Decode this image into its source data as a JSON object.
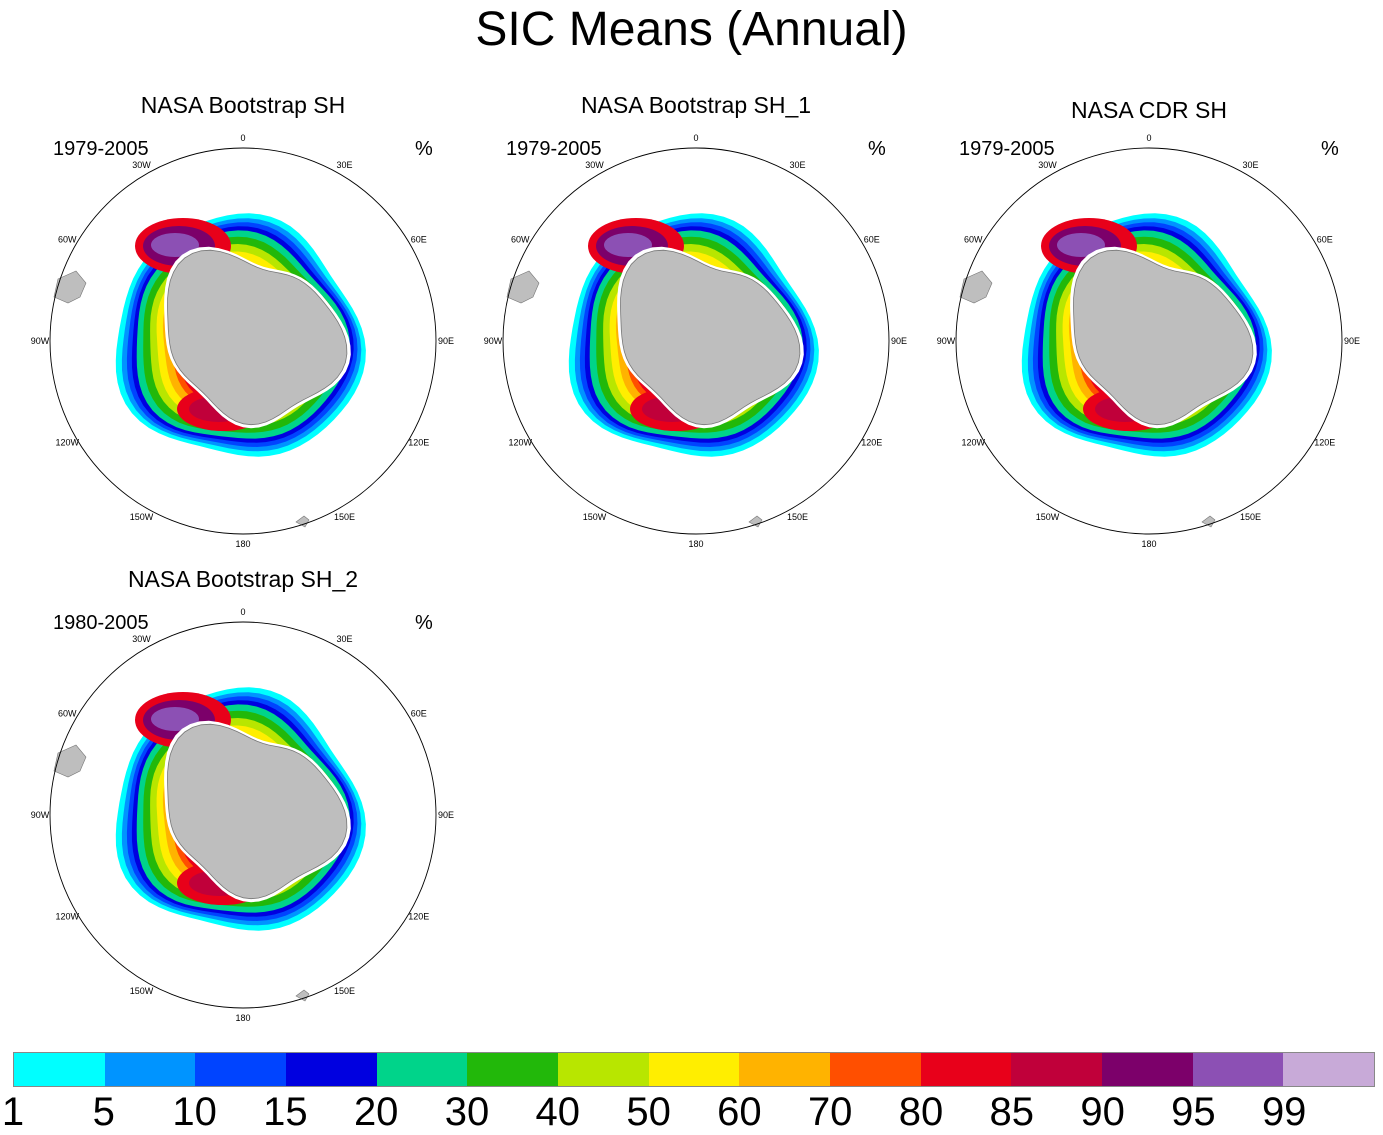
{
  "title": "SIC Means (Annual)",
  "panels": [
    {
      "title": "NASA Bootstrap SH",
      "years": "1979-2005",
      "unit": "%"
    },
    {
      "title": "NASA Bootstrap SH_1",
      "years": "1979-2005",
      "unit": "%"
    },
    {
      "title": "NASA CDR SH",
      "years": "1979-2005",
      "unit": "%"
    },
    {
      "title": "NASA Bootstrap SH_2",
      "years": "1980-2005",
      "unit": "%"
    }
  ],
  "longitude_labels": [
    "0",
    "30E",
    "60E",
    "90E",
    "120E",
    "150E",
    "180",
    "150W",
    "120W",
    "90W",
    "60W",
    "30W"
  ],
  "colorbar": {
    "colors": [
      "#00ffff",
      "#0094ff",
      "#0044ff",
      "#0000e0",
      "#00d48a",
      "#22b80a",
      "#b8e600",
      "#ffee00",
      "#ffb300",
      "#ff4f00",
      "#e8001a",
      "#c0003a",
      "#7c006a",
      "#8c50b4",
      "#c8aad8"
    ],
    "labels": [
      "1",
      "5",
      "10",
      "15",
      "20",
      "30",
      "40",
      "50",
      "60",
      "70",
      "80",
      "85",
      "90",
      "95",
      "99"
    ]
  },
  "land_color": "#bebebe"
}
